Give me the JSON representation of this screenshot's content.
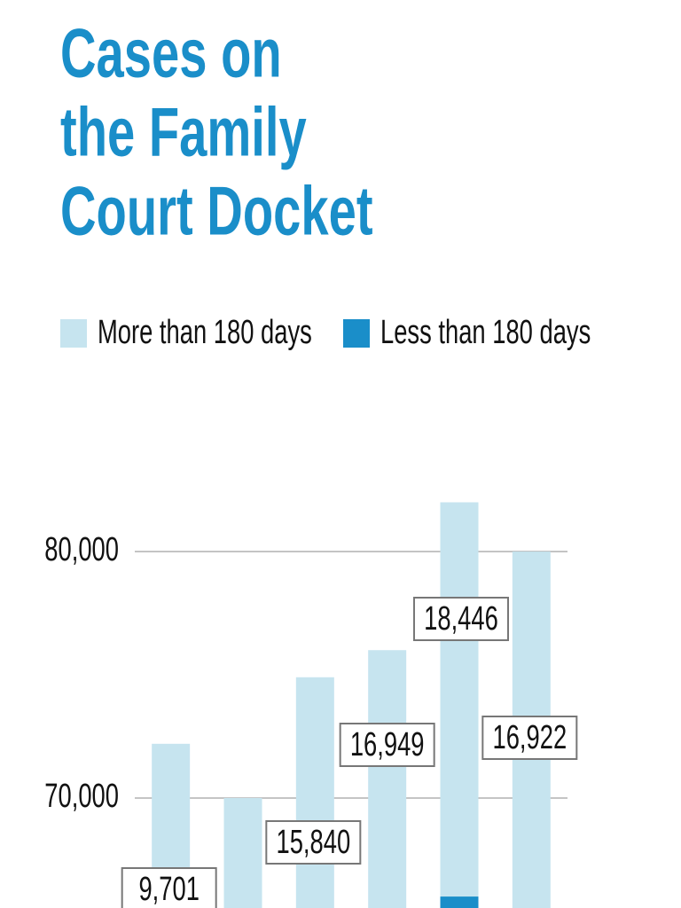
{
  "chart_data": {
    "type": "bar",
    "title": [
      "Cases on",
      "the Family",
      "Court Docket"
    ],
    "categories": [
      null,
      null,
      null,
      null,
      null,
      null
    ],
    "series": [
      {
        "name": "More than 180 days",
        "color": "#c6e4ef",
        "values": [
          72200,
          70000,
          74900,
          76000,
          82000,
          80000
        ]
      },
      {
        "name": "Less than 180 days",
        "color": "#1a8ec9",
        "values": [
          null,
          null,
          null,
          null,
          66000,
          null
        ]
      }
    ],
    "annotations": [
      "9,701",
      null,
      "15,840",
      "16,949",
      "18,446",
      "16,922"
    ],
    "ylim": [
      65500,
      84500
    ],
    "yticks": [
      {
        "value": 70000,
        "label": "70,000"
      },
      {
        "value": 80000,
        "label": "80,000"
      }
    ],
    "grid": true,
    "title_color": "#1a8ec9"
  }
}
